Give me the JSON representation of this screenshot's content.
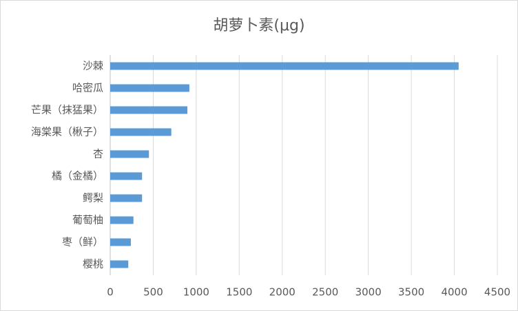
{
  "chart_data": {
    "type": "hbar",
    "title": "胡萝卜素(μg)",
    "categories": [
      "沙棘",
      "哈密瓜",
      "芒果（抹猛果）",
      "海棠果（楸子）",
      "杏",
      "橘（金橘）",
      "鳄梨",
      "葡萄柚",
      "枣（鲜）",
      "樱桃"
    ],
    "values": [
      4050,
      920,
      897,
      710,
      450,
      370,
      370,
      270,
      240,
      210
    ],
    "color": "#5b9bd5",
    "xlim": [
      0,
      4500
    ],
    "xticks": [
      0,
      500,
      1000,
      1500,
      2000,
      2500,
      3000,
      3500,
      4000,
      4500
    ],
    "grid": true
  }
}
